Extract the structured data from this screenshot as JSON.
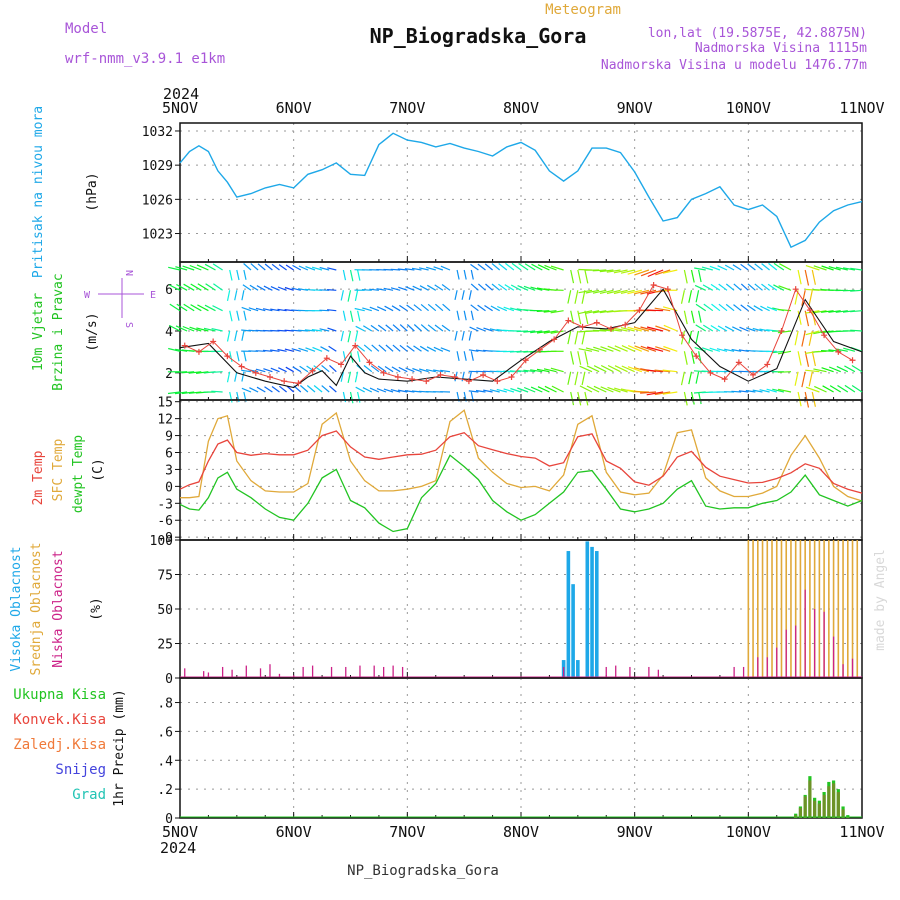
{
  "header": {
    "model_label": "Model",
    "model_name": "wrf-nmm_v3.9.1 e1km",
    "product": "Meteogram",
    "station": "NP_Biogradska_Gora",
    "lonlat": "lon,lat (19.5875E, 42.8875N)",
    "altitude": "Nadmorska Visina 1115m",
    "model_altitude": "Nadmorska Visina u modelu 1476.77m",
    "signature": "made by Angel",
    "footer_station": "NP_Biogradska_Gora"
  },
  "time_axis": {
    "year": "2024",
    "day_labels": [
      "5NOV",
      "6NOV",
      "7NOV",
      "8NOV",
      "9NOV",
      "10NOV",
      "11NOV"
    ]
  },
  "colors": {
    "pressure": "#1ea8e8",
    "temp2m": "#e8453c",
    "sfc": "#e0a93a",
    "dewpt": "#22c422",
    "cloud_high": "#1ea8e8",
    "cloud_mid": "#e0a93a",
    "cloud_low": "#cc2288",
    "precip_total": "#22c422",
    "precip_conv": "#e8453c",
    "precip_strat": "#f07a3a",
    "precip_snow": "#4444dd",
    "precip_hail": "#22c4b4",
    "wind_max": "#e8453c",
    "purple": "#a855d8"
  },
  "chart_data": [
    {
      "type": "line",
      "ylabel": [
        "Pritisak na nivou mora",
        "(hPa)"
      ],
      "yticks": [
        1023,
        1026,
        1029,
        1032
      ],
      "ylim": [
        1020.5,
        1032.7
      ],
      "grid": true,
      "series": [
        {
          "x": [
            0,
            2,
            4,
            6,
            8,
            10,
            12,
            15,
            18,
            21,
            24,
            27,
            30,
            33,
            36,
            39,
            42,
            45,
            48,
            51,
            54,
            57,
            60,
            63,
            66,
            69,
            72,
            75,
            78,
            81,
            84,
            87,
            90,
            93,
            96,
            99,
            102,
            105,
            108,
            111,
            114,
            117,
            120,
            123,
            126,
            129,
            132,
            135,
            138,
            141,
            144
          ],
          "values": [
            1029.2,
            1030.2,
            1030.7,
            1030.2,
            1028.5,
            1027.5,
            1026.2,
            1026.5,
            1027.0,
            1027.3,
            1027.0,
            1028.2,
            1028.6,
            1029.2,
            1028.2,
            1028.1,
            1030.8,
            1031.8,
            1031.2,
            1031.0,
            1030.6,
            1030.9,
            1030.5,
            1030.2,
            1029.8,
            1030.6,
            1031.0,
            1030.3,
            1028.5,
            1027.6,
            1028.5,
            1030.5,
            1030.5,
            1030.1,
            1028.4,
            1026.2,
            1024.1,
            1024.4,
            1026.0,
            1026.5,
            1027.1,
            1025.5,
            1025.1,
            1025.5,
            1024.5,
            1021.8,
            1022.4,
            1024.0,
            1025.0,
            1025.5,
            1025.8
          ]
        }
      ]
    },
    {
      "type": "scatter",
      "ylabel": [
        "10m Vjetar",
        "Brzina i Pravac",
        "(m/s)"
      ],
      "compass": {
        "n": "N",
        "s": "S",
        "w": "W",
        "e": "E"
      },
      "yticks": [
        2,
        4,
        6
      ],
      "ylim": [
        0.7,
        7.3
      ],
      "grid": true,
      "series": [
        {
          "name": "mean",
          "x": [
            0,
            6,
            12,
            18,
            24,
            27,
            30,
            33,
            36,
            39,
            42,
            48,
            54,
            60,
            66,
            72,
            78,
            84,
            90,
            96,
            102,
            108,
            114,
            120,
            126,
            132,
            138,
            144
          ],
          "values": [
            3.2,
            3.4,
            2.0,
            1.6,
            1.3,
            1.8,
            2.1,
            1.4,
            2.8,
            2.0,
            1.7,
            1.6,
            1.8,
            1.7,
            1.6,
            2.6,
            3.5,
            4.2,
            4.1,
            4.4,
            6.0,
            3.6,
            2.3,
            1.6,
            2.2,
            5.5,
            3.5,
            3.0
          ]
        },
        {
          "name": "max",
          "x": [
            1,
            4,
            7,
            10,
            13,
            16,
            19,
            22,
            25,
            28,
            31,
            34,
            37,
            40,
            43,
            46,
            49,
            52,
            55,
            58,
            61,
            64,
            67,
            70,
            73,
            76,
            79,
            82,
            85,
            88,
            91,
            94,
            97,
            100,
            103,
            106,
            109,
            112,
            115,
            118,
            121,
            124,
            127,
            130,
            133,
            136,
            139,
            142
          ],
          "values": [
            3.3,
            3.0,
            3.5,
            2.8,
            2.3,
            2.0,
            1.8,
            1.6,
            1.5,
            2.1,
            2.7,
            2.4,
            3.3,
            2.5,
            2.0,
            1.8,
            1.7,
            1.6,
            1.9,
            1.8,
            1.6,
            1.9,
            1.6,
            1.8,
            2.6,
            3.1,
            3.6,
            4.5,
            4.2,
            4.4,
            4.1,
            4.3,
            5.0,
            6.2,
            6.0,
            3.8,
            2.8,
            2.0,
            1.7,
            2.5,
            1.9,
            2.4,
            4.0,
            6.0,
            5.0,
            3.8,
            3.0,
            2.6
          ]
        }
      ]
    },
    {
      "type": "line",
      "ylabel": [
        "2m Temp",
        "SFC Temp",
        "dewpt Temp",
        "(C)"
      ],
      "yticks": [
        -9,
        -6,
        -3,
        0,
        3,
        6,
        9,
        12,
        15
      ],
      "ylim": [
        -9.5,
        15.3
      ],
      "grid": true,
      "series": [
        {
          "name": "2m Temp",
          "x": [
            0,
            2,
            4,
            6,
            8,
            10,
            12,
            15,
            18,
            21,
            24,
            27,
            30,
            33,
            36,
            39,
            42,
            45,
            48,
            51,
            54,
            57,
            60,
            63,
            66,
            69,
            72,
            75,
            78,
            81,
            84,
            87,
            90,
            93,
            96,
            99,
            102,
            105,
            108,
            111,
            114,
            117,
            120,
            123,
            126,
            129,
            132,
            135,
            138,
            141,
            144
          ],
          "values": [
            -0.5,
            0.3,
            0.8,
            4.5,
            7.5,
            8.2,
            6.0,
            5.5,
            5.8,
            5.6,
            5.6,
            6.4,
            9.0,
            9.8,
            7.0,
            5.2,
            4.8,
            5.2,
            5.6,
            5.7,
            6.4,
            8.8,
            9.5,
            7.2,
            6.5,
            5.8,
            5.3,
            5.0,
            3.6,
            4.2,
            8.8,
            9.3,
            4.5,
            3.2,
            0.8,
            0.2,
            1.8,
            5.2,
            6.2,
            3.4,
            1.8,
            1.2,
            0.6,
            0.7,
            1.4,
            2.4,
            4.0,
            3.2,
            0.5,
            -0.5,
            -1.2
          ]
        },
        {
          "name": "SFC Temp",
          "x": [
            0,
            2,
            4,
            6,
            8,
            10,
            12,
            15,
            18,
            21,
            24,
            27,
            30,
            33,
            36,
            39,
            42,
            45,
            48,
            51,
            54,
            57,
            60,
            63,
            66,
            69,
            72,
            75,
            78,
            81,
            84,
            87,
            90,
            93,
            96,
            99,
            102,
            105,
            108,
            111,
            114,
            117,
            120,
            123,
            126,
            129,
            132,
            135,
            138,
            141,
            144
          ],
          "values": [
            -2.0,
            -2.0,
            -1.8,
            8.0,
            12.0,
            12.5,
            4.5,
            1.0,
            -0.8,
            -1.0,
            -1.0,
            0.5,
            11.0,
            13.0,
            4.5,
            1.0,
            -0.8,
            -0.8,
            -0.5,
            0.0,
            1.0,
            11.5,
            13.5,
            5.0,
            2.5,
            0.5,
            -0.2,
            0.0,
            -0.8,
            2.0,
            11.0,
            12.5,
            2.5,
            -1.0,
            -1.5,
            -1.2,
            2.0,
            9.5,
            10.0,
            1.5,
            -0.8,
            -1.8,
            -1.8,
            -1.2,
            0.0,
            5.5,
            9.0,
            5.0,
            0.0,
            -1.8,
            -2.6
          ]
        },
        {
          "name": "dewpt Temp",
          "x": [
            0,
            2,
            4,
            6,
            8,
            10,
            12,
            15,
            18,
            21,
            24,
            27,
            30,
            33,
            36,
            39,
            42,
            45,
            48,
            51,
            54,
            57,
            60,
            63,
            66,
            69,
            72,
            75,
            78,
            81,
            84,
            87,
            90,
            93,
            96,
            99,
            102,
            105,
            108,
            111,
            114,
            117,
            120,
            123,
            126,
            129,
            132,
            135,
            138,
            141,
            144
          ],
          "values": [
            -3.2,
            -4.0,
            -4.2,
            -2.0,
            1.5,
            2.5,
            -0.5,
            -2.0,
            -4.0,
            -5.5,
            -6.0,
            -3.0,
            1.5,
            3.0,
            -2.5,
            -3.8,
            -6.5,
            -8.0,
            -7.5,
            -2.0,
            0.5,
            5.5,
            3.5,
            1.2,
            -2.5,
            -4.5,
            -6.0,
            -5.0,
            -3.0,
            -1.0,
            2.5,
            2.8,
            -0.5,
            -4.0,
            -4.5,
            -4.0,
            -3.0,
            -0.5,
            1.0,
            -3.5,
            -4.0,
            -3.8,
            -3.8,
            -3.0,
            -2.5,
            -1.0,
            2.0,
            -1.5,
            -2.5,
            -3.5,
            -2.5
          ]
        }
      ]
    },
    {
      "type": "bar",
      "ylabel": [
        "Visoka Oblacnost",
        "Srednja Oblacnost",
        "Niska Oblacnost",
        "(%)"
      ],
      "yticks": [
        0,
        25,
        50,
        75,
        100
      ],
      "ylim": [
        0,
        100
      ],
      "grid": true,
      "series": [
        {
          "name": "Visoka Oblacnost",
          "x": [
            81,
            82,
            83,
            84,
            86,
            87,
            88
          ],
          "values": [
            13,
            92,
            68,
            13,
            99,
            95,
            92
          ]
        },
        {
          "name": "Srednja Oblacnost",
          "x": [
            120,
            121,
            122,
            123,
            124,
            125,
            126,
            127,
            128,
            129,
            130,
            131,
            132,
            133,
            134,
            135,
            136,
            137,
            138,
            139,
            140,
            141,
            142,
            143
          ],
          "values": [
            100,
            100,
            100,
            100,
            100,
            100,
            100,
            100,
            100,
            100,
            100,
            100,
            100,
            100,
            100,
            100,
            100,
            100,
            100,
            100,
            100,
            100,
            100,
            100
          ]
        },
        {
          "name": "Niska Oblacnost",
          "x": [
            1,
            5,
            6,
            9,
            11,
            14,
            17,
            19,
            21,
            24,
            26,
            28,
            32,
            35,
            38,
            41,
            43,
            45,
            47,
            81,
            90,
            92,
            95,
            99,
            101,
            117,
            119,
            122,
            124,
            126,
            128,
            130,
            132,
            134,
            136,
            138,
            140,
            142
          ],
          "values": [
            7,
            5,
            4,
            8,
            6,
            9,
            7,
            10,
            3,
            2,
            8,
            9,
            8,
            8,
            9,
            9,
            8,
            9,
            8,
            8,
            8,
            9,
            8,
            8,
            6,
            8,
            8,
            15,
            15,
            22,
            35,
            38,
            64,
            50,
            48,
            30,
            10,
            14
          ]
        }
      ]
    },
    {
      "type": "bar",
      "ylabel": [
        "1hr Precip (mm)"
      ],
      "legend": [
        "Ukupna Kisa",
        "Konvek.Kisa",
        "Zaledj.Kisa",
        "Snijeg",
        "Grad"
      ],
      "yticks": [
        0,
        0.2,
        0.4,
        0.6,
        0.8
      ],
      "ylim": [
        0,
        0.97
      ],
      "grid": true,
      "series": [
        {
          "name": "Ukupna Kisa",
          "x": [
            130,
            131,
            132,
            133,
            134,
            135,
            136,
            137,
            138,
            139,
            140,
            141
          ],
          "values": [
            0.03,
            0.08,
            0.16,
            0.29,
            0.14,
            0.12,
            0.18,
            0.25,
            0.26,
            0.2,
            0.08,
            0.02
          ]
        },
        {
          "name": "Zaledj.Kisa",
          "x": [
            130,
            131,
            132,
            133,
            134,
            135,
            136,
            137,
            138,
            139,
            140,
            141
          ],
          "values": [
            0.02,
            0.07,
            0.15,
            0.26,
            0.12,
            0.1,
            0.16,
            0.22,
            0.24,
            0.18,
            0.06,
            0.01
          ]
        }
      ]
    }
  ]
}
